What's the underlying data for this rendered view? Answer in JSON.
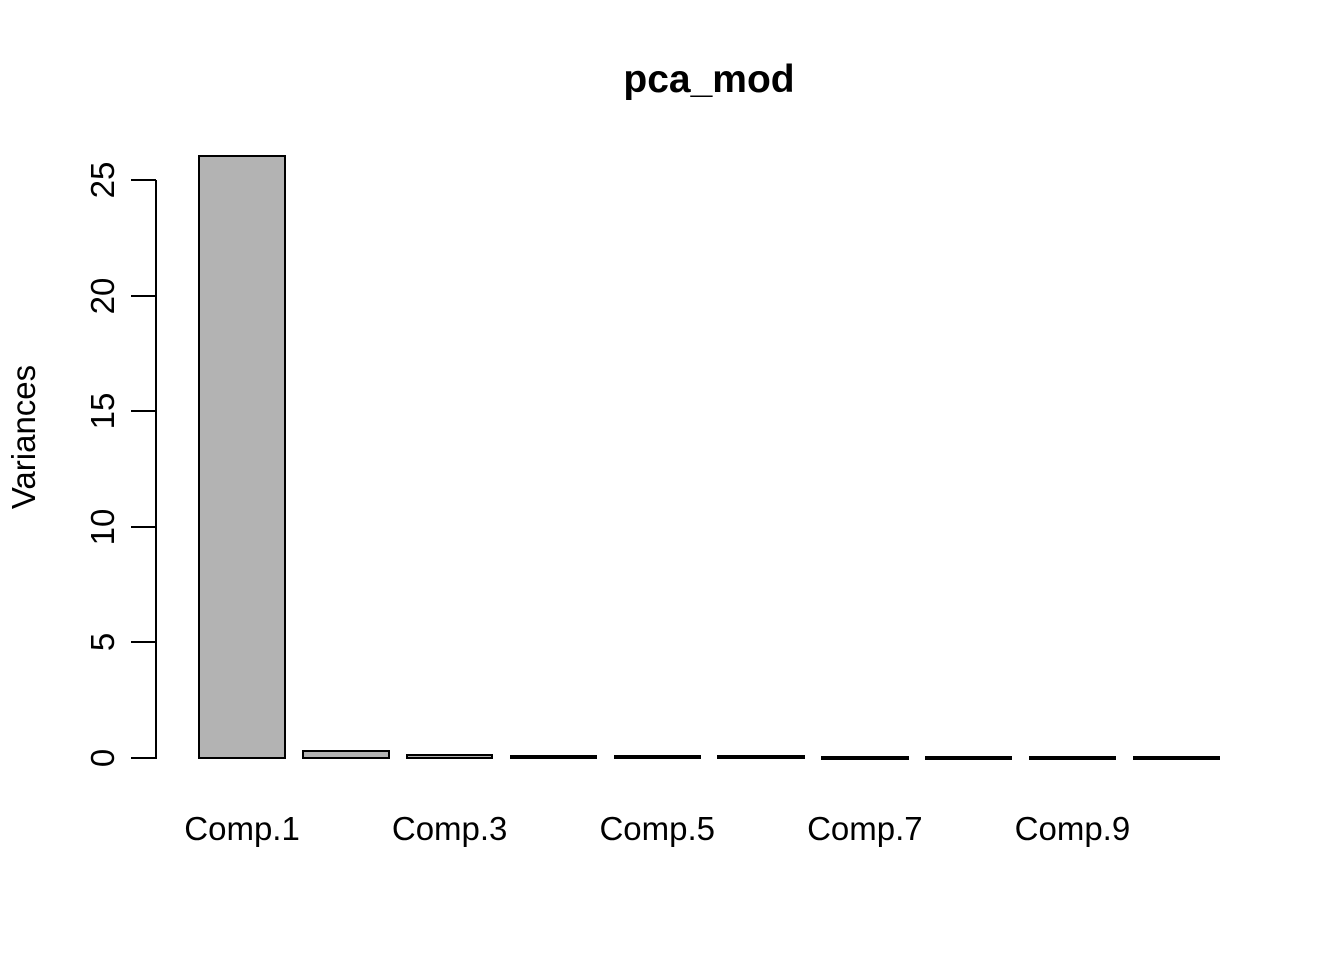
{
  "window": {
    "background": "#ffffff"
  },
  "chart_data": {
    "type": "bar",
    "title": "pca_mod",
    "ylabel": "Variances",
    "xlabel": "",
    "n_bars": 10,
    "values": [
      26.0,
      0.26,
      0.1,
      0.06,
      0.04,
      0.03,
      0.02,
      0.02,
      0.015,
      0.01
    ],
    "bar_label_indices": [
      0,
      2,
      4,
      6,
      8
    ],
    "bar_labels_visible": [
      "Comp.1",
      "Comp.3",
      "Comp.5",
      "Comp.7",
      "Comp.9"
    ],
    "y_ticks": [
      "0",
      "5",
      "10",
      "15",
      "20",
      "25"
    ],
    "ylim": [
      0,
      26
    ],
    "grid": false,
    "legend_position": "none",
    "colors": {
      "bar_fill": "#b3b3b3",
      "bar_border": "#000000",
      "axis": "#000000",
      "text": "#000000",
      "background": "#ffffff"
    }
  }
}
